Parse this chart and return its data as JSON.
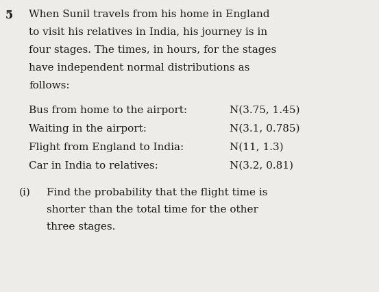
{
  "background_color": "#eeece8",
  "text_color": "#1a1a1a",
  "question_number": "5",
  "intro_lines": [
    "When Sunil travels from his home in England",
    "to visit his relatives in India, his journey is in",
    "four stages. The times, in hours, for the stages",
    "have independent normal distributions as",
    "follows:"
  ],
  "stages": [
    {
      "label": "Bus from home to the airport:",
      "dist": "N(3.75, 1.45)"
    },
    {
      "label": "Waiting in the airport:",
      "dist": "N(3.1, 0.785)"
    },
    {
      "label": "Flight from England to India:",
      "dist": "N(11, 1.3)"
    },
    {
      "label": "Car in India to relatives:",
      "dist": "N(3.2, 0.81)"
    }
  ],
  "subpart": "(i)",
  "subpart_lines": [
    "Find the probability that the flight time is",
    "shorter than the total time for the other",
    "three stages."
  ],
  "font_size_body": 11.0,
  "font_size_number": 11.5,
  "font_family": "DejaVu Serif"
}
